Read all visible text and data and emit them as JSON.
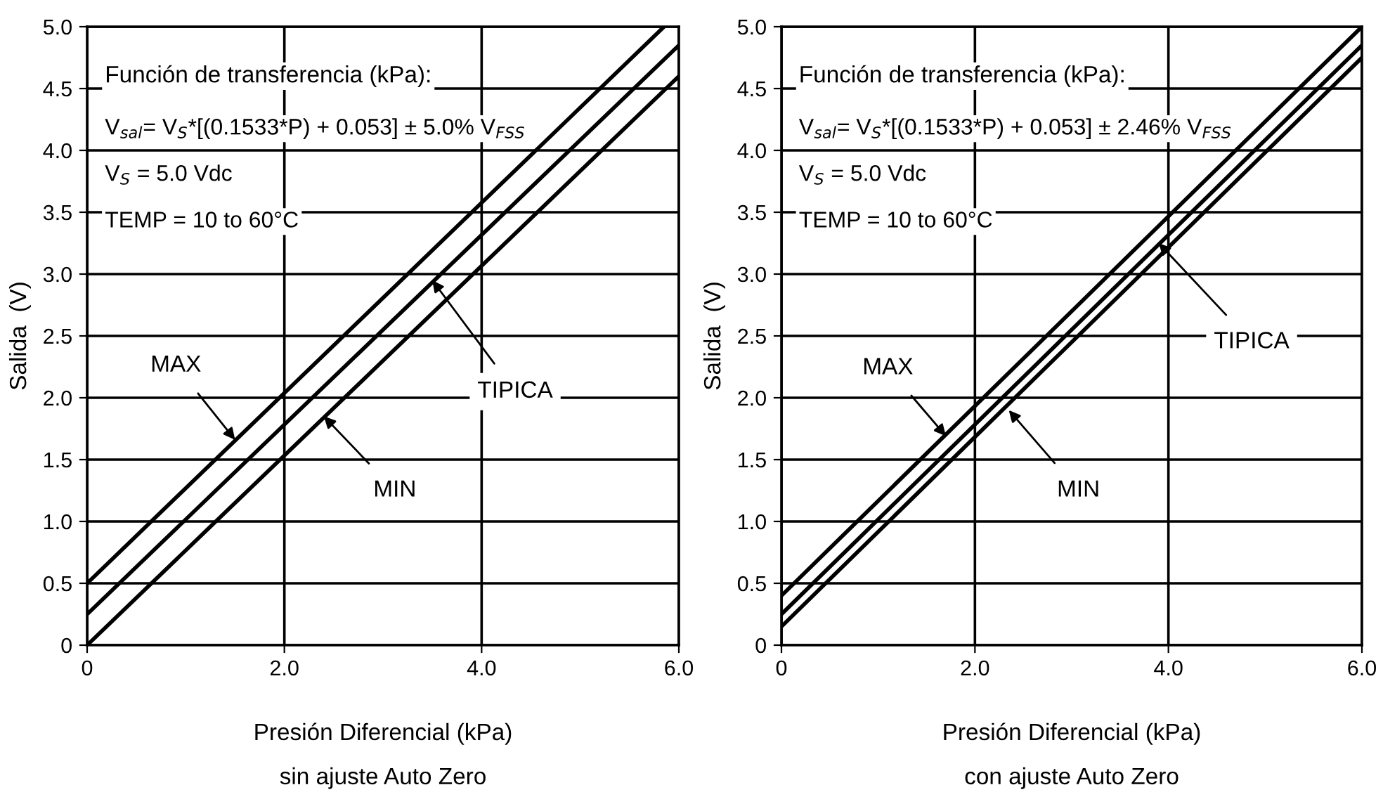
{
  "chart_data": [
    {
      "type": "line",
      "xlabel": "Presión Diferencial (kPa)",
      "ylabel": "Salida  (V)",
      "xlim": [
        0,
        6
      ],
      "ylim": [
        0,
        5
      ],
      "xticks": [
        0,
        {
          "value": 2,
          "label": "2.0"
        },
        {
          "value": 4,
          "label": "4.0"
        },
        {
          "value": 6,
          "label": "6.0"
        }
      ],
      "yticks": [
        0,
        {
          "value": 0.5,
          "label": "0.5"
        },
        {
          "value": 1,
          "label": "1.0"
        },
        {
          "value": 1.5,
          "label": "1.5"
        },
        {
          "value": 2,
          "label": "2.0"
        },
        {
          "value": 2.5,
          "label": "2.5"
        },
        {
          "value": 3,
          "label": "3.0"
        },
        {
          "value": 3.5,
          "label": "3.5"
        },
        {
          "value": 4,
          "label": "4.0"
        },
        {
          "value": 4.5,
          "label": "4.5"
        },
        {
          "value": 5,
          "label": "5.0"
        }
      ],
      "grid": true,
      "marker": "none",
      "line_style": "solid",
      "series": [
        {
          "color": "#000000",
          "x": [
            0,
            5.85
          ],
          "values": [
            0.5,
            5.0
          ]
        },
        {
          "color": "#000000",
          "x": [
            0,
            6
          ],
          "values": [
            0.25,
            4.85
          ]
        },
        {
          "color": "#000000",
          "x": [
            0,
            6
          ],
          "values": [
            0.0,
            4.6
          ]
        }
      ],
      "annotations": [
        "Función de transferencia (kPa):",
        "V$_{sal}$= V$_{S}$*[(0.1533*P) + 0.053] ± 5.0% V$_{FSS}$",
        "V$_{S}$ = 5.0 Vdc",
        "TEMP = 10 to 60°C",
        {
          "text": "MAX",
          "x": 1.5,
          "y": 1.66
        },
        {
          "text": "MIN",
          "x": 2.4,
          "y": 1.85
        },
        {
          "text": "TIPICA",
          "x": 3.5,
          "y": 2.95
        },
        "sin ajuste Auto Zero"
      ]
    },
    {
      "type": "line",
      "xlabel": "Presión Diferencial (kPa)",
      "ylabel": "Salida  (V)",
      "xlim": [
        0,
        6
      ],
      "ylim": [
        0,
        5
      ],
      "xticks": [
        0,
        {
          "value": 2,
          "label": "2.0"
        },
        {
          "value": 4,
          "label": "4.0"
        },
        {
          "value": 6,
          "label": "6.0"
        }
      ],
      "yticks": [
        0,
        {
          "value": 0.5,
          "label": "0.5"
        },
        {
          "value": 1,
          "label": "1.0"
        },
        {
          "value": 1.5,
          "label": "1.5"
        },
        {
          "value": 2,
          "label": "2.0"
        },
        {
          "value": 2.5,
          "label": "2.5"
        },
        {
          "value": 3,
          "label": "3.0"
        },
        {
          "value": 3.5,
          "label": "3.5"
        },
        {
          "value": 4,
          "label": "4.0"
        },
        {
          "value": 4.5,
          "label": "4.5"
        },
        {
          "value": 5,
          "label": "5.0"
        }
      ],
      "grid": true,
      "marker": "none",
      "line_style": "solid",
      "series": [
        {
          "color": "#000000",
          "x": [
            0,
            6
          ],
          "values": [
            0.4,
            5.0
          ]
        },
        {
          "color": "#000000",
          "x": [
            0,
            6
          ],
          "values": [
            0.25,
            4.85
          ]
        },
        {
          "color": "#000000",
          "x": [
            0,
            6
          ],
          "values": [
            0.15,
            4.75
          ]
        }
      ],
      "annotations": [
        "Función de transferencia (kPa):",
        "V$_{sal}$= V$_{S}$*[(0.1533*P) + 0.053] ± 2.46% V$_{FSS}$",
        "V$_{S}$ = 5.0 Vdc",
        "TEMP = 10 to 60°C",
        {
          "text": "MAX",
          "x": 1.7,
          "y": 1.69
        },
        {
          "text": "MIN",
          "x": 2.35,
          "y": 1.9
        },
        {
          "text": "TIPICA",
          "x": 3.9,
          "y": 3.25
        },
        "con ajuste Auto Zero"
      ]
    }
  ]
}
